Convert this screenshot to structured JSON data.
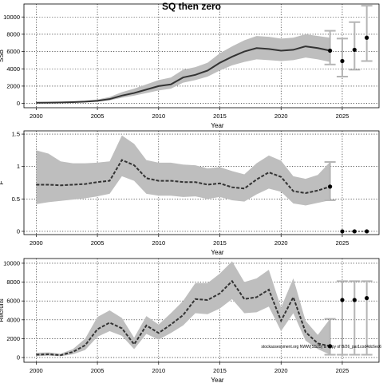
{
  "title": "SQ then zero",
  "watermark": "stockassessment.org NWW(SS25) & copy of B/26_par1cod4dc6ec6",
  "colors": {
    "band": "#bebebe",
    "line": "#333333",
    "whisker": "#b5b5b5",
    "point": "#000000"
  },
  "chart_data": [
    {
      "type": "line",
      "title": "",
      "xlabel": "Year",
      "ylabel": "SSB",
      "xlim": [
        1999,
        2028
      ],
      "ylim": [
        -500,
        11500
      ],
      "xticks": [
        2000,
        2005,
        2010,
        2015,
        2020,
        2025
      ],
      "yticks": [
        0,
        2000,
        4000,
        6000,
        8000,
        10000
      ],
      "grid": true,
      "dashed_line": false,
      "series": [
        {
          "x": [
            2000,
            2001,
            2002,
            2003,
            2004,
            2005,
            2006,
            2007,
            2008,
            2009,
            2010,
            2011,
            2012,
            2013,
            2014,
            2015,
            2016,
            2017,
            2018,
            2019,
            2020,
            2021,
            2022,
            2023,
            2024
          ],
          "y": [
            80,
            90,
            110,
            150,
            200,
            300,
            500,
            900,
            1200,
            1600,
            2000,
            2200,
            3000,
            3300,
            3800,
            4700,
            5400,
            6000,
            6400,
            6300,
            6100,
            6200,
            6600,
            6400,
            6100
          ],
          "lower": [
            40,
            50,
            60,
            90,
            130,
            200,
            350,
            650,
            900,
            1200,
            1500,
            1700,
            2400,
            2700,
            3100,
            3800,
            4400,
            4800,
            5100,
            5000,
            4900,
            5000,
            5300,
            5100,
            4800
          ],
          "upper": [
            140,
            150,
            180,
            240,
            320,
            450,
            750,
            1300,
            1700,
            2200,
            2700,
            3000,
            3900,
            4200,
            4700,
            5800,
            6600,
            7300,
            7800,
            7700,
            7500,
            7600,
            8000,
            7800,
            7600
          ]
        }
      ],
      "forecast": {
        "x": [
          2024,
          2025,
          2026,
          2027
        ],
        "y": [
          6100,
          4900,
          6200,
          7600
        ],
        "lower": [
          4500,
          3100,
          3900,
          4900
        ],
        "upper": [
          8400,
          7500,
          9400,
          11300
        ]
      }
    },
    {
      "type": "line",
      "title": "",
      "xlabel": "Year",
      "ylabel": "F",
      "xlim": [
        1999,
        2028
      ],
      "ylim": [
        -0.05,
        1.55
      ],
      "xticks": [
        2000,
        2005,
        2010,
        2015,
        2020,
        2025
      ],
      "yticks": [
        0.0,
        0.5,
        1.0,
        1.5
      ],
      "grid": true,
      "dashed_line": true,
      "series": [
        {
          "x": [
            2000,
            2001,
            2002,
            2003,
            2004,
            2005,
            2006,
            2007,
            2008,
            2009,
            2010,
            2011,
            2012,
            2013,
            2014,
            2015,
            2016,
            2017,
            2018,
            2019,
            2020,
            2021,
            2022,
            2023,
            2024
          ],
          "y": [
            0.72,
            0.72,
            0.71,
            0.72,
            0.73,
            0.76,
            0.78,
            1.1,
            1.02,
            0.82,
            0.78,
            0.78,
            0.76,
            0.76,
            0.72,
            0.74,
            0.68,
            0.66,
            0.8,
            0.91,
            0.84,
            0.62,
            0.59,
            0.63,
            0.69
          ],
          "lower": [
            0.42,
            0.45,
            0.47,
            0.49,
            0.51,
            0.54,
            0.58,
            0.85,
            0.78,
            0.58,
            0.55,
            0.55,
            0.53,
            0.54,
            0.5,
            0.53,
            0.48,
            0.46,
            0.57,
            0.66,
            0.61,
            0.43,
            0.4,
            0.44,
            0.48
          ],
          "upper": [
            1.25,
            1.2,
            1.08,
            1.05,
            1.05,
            1.06,
            1.08,
            1.48,
            1.35,
            1.1,
            1.06,
            1.06,
            1.03,
            1.02,
            0.97,
            0.99,
            0.93,
            0.88,
            1.05,
            1.17,
            1.09,
            0.85,
            0.81,
            0.87,
            1.07
          ]
        }
      ],
      "forecast": {
        "x": [
          2024,
          2025,
          2026,
          2027
        ],
        "y": [
          0.69,
          0.0,
          0.0,
          0.0
        ],
        "lower": [
          0.48,
          0.0,
          0.0,
          0.0
        ],
        "upper": [
          1.07,
          0.0,
          0.0,
          0.0
        ]
      }
    },
    {
      "type": "line",
      "title": "",
      "xlabel": "Year",
      "ylabel": "Recruits",
      "xlim": [
        1999,
        2028
      ],
      "ylim": [
        -500,
        10500
      ],
      "xticks": [
        2000,
        2005,
        2010,
        2015,
        2020,
        2025
      ],
      "yticks": [
        0,
        2000,
        4000,
        6000,
        8000,
        10000
      ],
      "grid": true,
      "dashed_line": true,
      "series": [
        {
          "x": [
            2000,
            2001,
            2002,
            2003,
            2004,
            2005,
            2006,
            2007,
            2008,
            2009,
            2010,
            2011,
            2012,
            2013,
            2014,
            2015,
            2016,
            2017,
            2018,
            2019,
            2020,
            2021,
            2022,
            2023,
            2024
          ],
          "y": [
            300,
            350,
            250,
            600,
            1300,
            3000,
            3700,
            3100,
            1400,
            3400,
            2600,
            3500,
            4500,
            6200,
            6100,
            6800,
            8100,
            6200,
            6400,
            7200,
            3900,
            6400,
            2700,
            1500,
            1200
          ],
          "lower": [
            150,
            200,
            150,
            350,
            800,
            2200,
            2800,
            2300,
            900,
            2500,
            1900,
            2600,
            3400,
            4700,
            4600,
            5200,
            6200,
            4700,
            4800,
            5400,
            2800,
            4700,
            1800,
            900,
            300
          ],
          "upper": [
            500,
            550,
            400,
            900,
            2000,
            4300,
            5000,
            4200,
            2100,
            4400,
            3500,
            4700,
            6000,
            7900,
            7900,
            8900,
            10200,
            8000,
            8400,
            9300,
            5300,
            8400,
            3900,
            2400,
            4100
          ]
        }
      ],
      "forecast": {
        "x": [
          2024,
          2025,
          2026,
          2027
        ],
        "y": [
          1200,
          6100,
          6100,
          6300
        ],
        "lower": [
          300,
          300,
          300,
          300
        ],
        "upper": [
          4100,
          8100,
          8100,
          8100
        ]
      }
    }
  ]
}
